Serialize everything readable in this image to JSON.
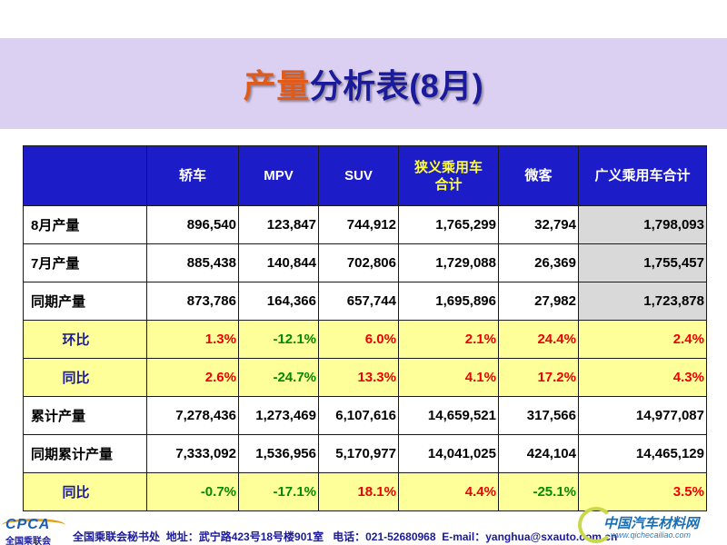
{
  "title": {
    "accent": "产量",
    "rest": "分析表(8月)"
  },
  "table": {
    "header": [
      "",
      "轿车",
      "MPV",
      "SUV",
      "狭义乘用车合计",
      "微客",
      "广义乘用车合计"
    ],
    "header_line1_narrow": "狭义乘用车",
    "header_line2_narrow": "合计",
    "rows": [
      {
        "label": "8月产量",
        "style": "white",
        "values": [
          "896,540",
          "123,847",
          "744,912",
          "1,765,299",
          "32,794",
          "1,798,093"
        ],
        "signs": [
          "",
          "",
          "",
          "",
          "",
          ""
        ]
      },
      {
        "label": "7月产量",
        "style": "white",
        "values": [
          "885,438",
          "140,844",
          "702,806",
          "1,729,088",
          "26,369",
          "1,755,457"
        ],
        "signs": [
          "",
          "",
          "",
          "",
          "",
          ""
        ]
      },
      {
        "label": "同期产量",
        "style": "white",
        "values": [
          "873,786",
          "164,366",
          "657,744",
          "1,695,896",
          "27,982",
          "1,723,878"
        ],
        "signs": [
          "",
          "",
          "",
          "",
          "",
          ""
        ]
      },
      {
        "label": "环比",
        "style": "yellow",
        "values": [
          "1.3%",
          "-12.1%",
          "6.0%",
          "2.1%",
          "24.4%",
          "2.4%"
        ],
        "signs": [
          "pos",
          "neg",
          "pos",
          "pos",
          "pos",
          "pos"
        ]
      },
      {
        "label": "同比",
        "style": "yellow",
        "values": [
          "2.6%",
          "-24.7%",
          "13.3%",
          "4.1%",
          "17.2%",
          "4.3%"
        ],
        "signs": [
          "pos",
          "neg",
          "pos",
          "pos",
          "pos",
          "pos"
        ]
      },
      {
        "label": "累计产量",
        "style": "white",
        "values": [
          "7,278,436",
          "1,273,469",
          "6,107,616",
          "14,659,521",
          "317,566",
          "14,977,087"
        ],
        "signs": [
          "",
          "",
          "",
          "",
          "",
          ""
        ]
      },
      {
        "label": "同期累计产量",
        "style": "white",
        "values": [
          "7,333,092",
          "1,536,956",
          "5,170,977",
          "14,041,025",
          "424,104",
          "14,465,129"
        ],
        "signs": [
          "",
          "",
          "",
          "",
          "",
          ""
        ]
      },
      {
        "label": "同比",
        "style": "yellow",
        "values": [
          "-0.7%",
          "-17.1%",
          "18.1%",
          "4.4%",
          "-25.1%",
          "3.5%"
        ],
        "signs": [
          "neg",
          "neg",
          "pos",
          "pos",
          "neg",
          "pos"
        ]
      }
    ]
  },
  "footer": {
    "logo": "CPCA",
    "logo_sub": "全国乘联会",
    "org": "全国乘联会秘书处",
    "address": "地址：武宁路423号18号楼901室",
    "phone": "电话：021-52680968",
    "email": "E-mail：yanghua@sxauto.com.cn"
  },
  "watermark": {
    "name": "中国汽车材料网",
    "url": "www.qichecailiao.com"
  },
  "colors": {
    "header_bg": "#1c1cc8",
    "title_band": "#dcd0f2",
    "highlight_row": "#ffff99",
    "positive": "#ee0000",
    "negative": "#008a00"
  }
}
